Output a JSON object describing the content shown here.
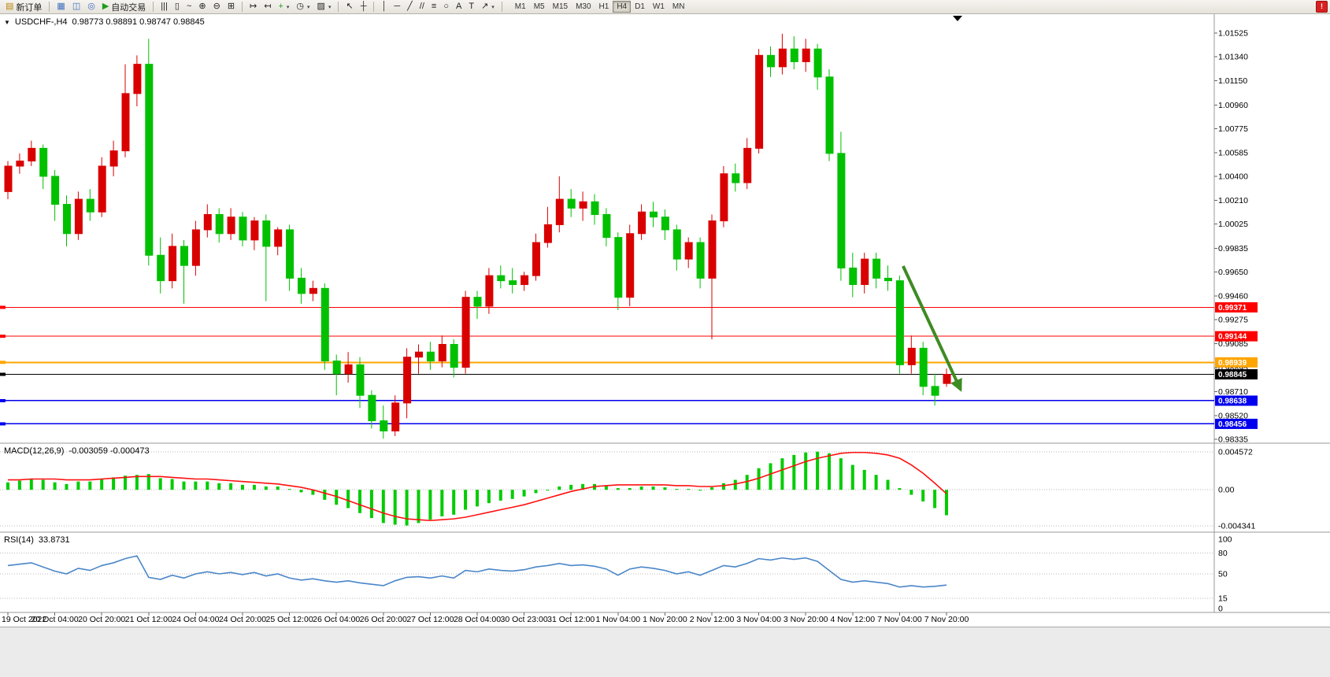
{
  "colors": {
    "bull": "#d90000",
    "bear": "#00c000",
    "macd_hist": "#00cc00",
    "macd_signal": "#ff1010",
    "rsi_line": "#4a86c8",
    "hline_red": "#ff0000",
    "hline_orange": "#ffa500",
    "hline_blue": "#0000ee",
    "current_price": "#000000",
    "arrow": "#3e8b24",
    "panel_border": "#999999",
    "grid_dotted": "#b8b8b8"
  },
  "icons": {
    "symbol_dropdown": "▼",
    "alert": "!"
  },
  "toolbar": {
    "buttons": [
      {
        "name": "new-order-button",
        "glyph": "▤",
        "color": "#b8860b",
        "label": "新订单"
      },
      {
        "sep": true
      },
      {
        "name": "market-watch-button",
        "glyph": "▦",
        "color": "#3c6ebf"
      },
      {
        "name": "navigator-button",
        "glyph": "◫",
        "color": "#3c6ebf"
      },
      {
        "name": "terminal-button",
        "glyph": "◎",
        "color": "#3c6ebf"
      },
      {
        "name": "autotrading-button",
        "glyph": "▶",
        "color": "#1d9e1d",
        "label": "自动交易"
      },
      {
        "sep": true
      },
      {
        "name": "bars-chart-type-button",
        "glyph": "|||"
      },
      {
        "name": "candles-chart-type-button",
        "glyph": "▯"
      },
      {
        "name": "line-chart-type-button",
        "glyph": "~"
      },
      {
        "name": "zoom-in-button",
        "glyph": "⊕"
      },
      {
        "name": "zoom-out-button",
        "glyph": "⊖"
      },
      {
        "name": "tile-windows-button",
        "glyph": "⊞"
      },
      {
        "sep": true
      },
      {
        "name": "auto-scroll-button",
        "glyph": "↦"
      },
      {
        "name": "chart-shift-button",
        "glyph": "↤"
      },
      {
        "name": "indicators-button",
        "glyph": "+",
        "color": "#1d9e1d",
        "dropdown": true
      },
      {
        "name": "periods-button",
        "glyph": "◷",
        "dropdown": true
      },
      {
        "name": "templates-button",
        "glyph": "▨",
        "dropdown": true
      },
      {
        "sep": true
      },
      {
        "name": "cursor-button",
        "glyph": "↖"
      },
      {
        "name": "crosshair-button",
        "glyph": "┼"
      },
      {
        "sep": true
      },
      {
        "name": "vertical-line-button",
        "glyph": "│"
      },
      {
        "name": "horizontal-line-button",
        "glyph": "─"
      },
      {
        "name": "trendline-button",
        "glyph": "╱"
      },
      {
        "name": "channel-button",
        "glyph": "//"
      },
      {
        "name": "fibonacci-button",
        "glyph": "≡"
      },
      {
        "name": "shapes-button",
        "glyph": "○"
      },
      {
        "name": "text-button",
        "glyph": "A"
      },
      {
        "name": "text-label-button",
        "glyph": "T"
      },
      {
        "name": "arrows-button",
        "glyph": "↗",
        "dropdown": true
      },
      {
        "sep": true
      }
    ],
    "timeframes": [
      "M1",
      "M5",
      "M15",
      "M30",
      "H1",
      "H4",
      "D1",
      "W1",
      "MN"
    ],
    "active_timeframe": "H4"
  },
  "chart": {
    "symbol_period": "USDCHF-,H4",
    "ohlc_values": "0.98773 0.98891 0.98747 0.98845"
  },
  "indicators": {
    "macd_label": "MACD(12,26,9)",
    "macd_values": "-0.003059 -0.000473",
    "rsi_label": "RSI(14)",
    "rsi_value": "33.8731"
  },
  "chart_data": {
    "type": "candlestick",
    "symbol": "USDCHF-",
    "timeframe": "H4",
    "current_ohlc": {
      "open": 0.98773,
      "high": 0.98891,
      "low": 0.98747,
      "close": 0.98845
    },
    "price_axis": {
      "min": 0.98335,
      "max": 1.01525,
      "ticks": [
        "1.01525",
        "1.01340",
        "1.01150",
        "1.00960",
        "1.00775",
        "1.00585",
        "1.00400",
        "1.00210",
        "1.00025",
        "0.99835",
        "0.99650",
        "0.99460",
        "0.99275",
        "0.99085",
        "0.98895",
        "0.98710",
        "0.98520",
        "0.98335"
      ]
    },
    "time_labels": [
      "19 Oct 2022",
      "20 Oct 04:00",
      "20 Oct 20:00",
      "21 Oct 12:00",
      "24 Oct 04:00",
      "24 Oct 20:00",
      "25 Oct 12:00",
      "26 Oct 04:00",
      "26 Oct 20:00",
      "27 Oct 12:00",
      "28 Oct 04:00",
      "30 Oct 23:00",
      "31 Oct 12:00",
      "1 Nov 04:00",
      "1 Nov 20:00",
      "2 Nov 12:00",
      "3 Nov 04:00",
      "3 Nov 20:00",
      "4 Nov 12:00",
      "7 Nov 04:00",
      "7 Nov 20:00"
    ],
    "candles_per_time_label": 4,
    "candles": [
      [
        1.0028,
        1.0052,
        1.0022,
        1.0048
      ],
      [
        1.0048,
        1.0058,
        1.0042,
        1.0052
      ],
      [
        1.0052,
        1.0068,
        1.0048,
        1.0062
      ],
      [
        1.0062,
        1.0065,
        1.003,
        1.004
      ],
      [
        1.004,
        1.0045,
        1.0005,
        1.0018
      ],
      [
        1.0018,
        1.0025,
        0.9985,
        0.9995
      ],
      [
        0.9995,
        1.0028,
        0.999,
        1.0022
      ],
      [
        1.0022,
        1.003,
        1.0005,
        1.0012
      ],
      [
        1.0012,
        1.0055,
        1.0008,
        1.0048
      ],
      [
        1.0048,
        1.0068,
        1.004,
        1.006
      ],
      [
        1.006,
        1.0128,
        1.0055,
        1.0105
      ],
      [
        1.0105,
        1.0135,
        1.0095,
        1.0128
      ],
      [
        1.0128,
        1.0148,
        0.997,
        0.9978
      ],
      [
        0.9978,
        0.9992,
        0.9948,
        0.9958
      ],
      [
        0.9958,
        0.9995,
        0.9952,
        0.9985
      ],
      [
        0.9985,
        0.999,
        0.994,
        0.997
      ],
      [
        0.997,
        1.0005,
        0.9962,
        0.9998
      ],
      [
        0.9998,
        1.0018,
        0.9992,
        1.001
      ],
      [
        1.001,
        1.0015,
        0.9988,
        0.9995
      ],
      [
        0.9995,
        1.0015,
        0.999,
        1.0008
      ],
      [
        1.0008,
        1.0012,
        0.9985,
        0.999
      ],
      [
        0.999,
        1.0008,
        0.9982,
        1.0005
      ],
      [
        1.0005,
        1.001,
        0.9942,
        0.9985
      ],
      [
        0.9985,
        1.0,
        0.9978,
        0.9998
      ],
      [
        0.9998,
        1.0002,
        0.995,
        0.996
      ],
      [
        0.996,
        0.9968,
        0.994,
        0.9948
      ],
      [
        0.9948,
        0.9958,
        0.9942,
        0.9952
      ],
      [
        0.9952,
        0.9956,
        0.9888,
        0.9895
      ],
      [
        0.9895,
        0.99,
        0.9868,
        0.9885
      ],
      [
        0.9885,
        0.9902,
        0.9878,
        0.9892
      ],
      [
        0.9892,
        0.9898,
        0.9858,
        0.9868
      ],
      [
        0.9868,
        0.9872,
        0.9842,
        0.9848
      ],
      [
        0.9848,
        0.986,
        0.9834,
        0.984
      ],
      [
        0.984,
        0.9868,
        0.9836,
        0.9862
      ],
      [
        0.9862,
        0.9905,
        0.985,
        0.9898
      ],
      [
        0.9898,
        0.9908,
        0.9885,
        0.9902
      ],
      [
        0.9902,
        0.991,
        0.9888,
        0.9895
      ],
      [
        0.9895,
        0.9915,
        0.989,
        0.9908
      ],
      [
        0.9908,
        0.9912,
        0.9882,
        0.989
      ],
      [
        0.989,
        0.995,
        0.9885,
        0.9945
      ],
      [
        0.9945,
        0.995,
        0.9928,
        0.9938
      ],
      [
        0.9938,
        0.9968,
        0.9932,
        0.9962
      ],
      [
        0.9962,
        0.997,
        0.9952,
        0.9958
      ],
      [
        0.9958,
        0.9968,
        0.9948,
        0.9955
      ],
      [
        0.9955,
        0.9965,
        0.995,
        0.9962
      ],
      [
        0.9962,
        0.9995,
        0.9958,
        0.9988
      ],
      [
        0.9988,
        1.0016,
        0.9984,
        1.0002
      ],
      [
        1.0002,
        1.004,
        0.9996,
        1.0022
      ],
      [
        1.0022,
        1.003,
        1.0008,
        1.0015
      ],
      [
        1.0015,
        1.0028,
        1.0005,
        1.002
      ],
      [
        1.002,
        1.0026,
        1.0002,
        1.001
      ],
      [
        1.001,
        1.0015,
        0.9985,
        0.9992
      ],
      [
        0.9992,
        0.9996,
        0.9935,
        0.9945
      ],
      [
        0.9945,
        1.0002,
        0.9938,
        0.9995
      ],
      [
        0.9995,
        1.0018,
        0.999,
        1.0012
      ],
      [
        1.0012,
        1.002,
        1.0,
        1.0008
      ],
      [
        1.0008,
        1.0014,
        0.999,
        0.9998
      ],
      [
        0.9998,
        1.0002,
        0.9966,
        0.9975
      ],
      [
        0.9975,
        0.9992,
        0.9968,
        0.9988
      ],
      [
        0.9988,
        0.9992,
        0.9952,
        0.996
      ],
      [
        0.996,
        1.001,
        0.9912,
        1.0005
      ],
      [
        1.0005,
        1.0048,
        1.0,
        1.0042
      ],
      [
        1.0042,
        1.005,
        1.0028,
        1.0035
      ],
      [
        1.0035,
        1.007,
        1.003,
        1.0062
      ],
      [
        1.0062,
        1.014,
        1.0058,
        1.0135
      ],
      [
        1.0135,
        1.0142,
        1.0118,
        1.0126
      ],
      [
        1.0126,
        1.0152,
        1.012,
        1.014
      ],
      [
        1.014,
        1.015,
        1.0124,
        1.013
      ],
      [
        1.013,
        1.0148,
        1.0122,
        1.014
      ],
      [
        1.014,
        1.0144,
        1.0108,
        1.0118
      ],
      [
        1.0118,
        1.0124,
        1.0052,
        1.0058
      ],
      [
        1.0058,
        1.0075,
        0.9958,
        0.9968
      ],
      [
        0.9968,
        0.998,
        0.9945,
        0.9955
      ],
      [
        0.9955,
        0.998,
        0.9948,
        0.9975
      ],
      [
        0.9975,
        0.998,
        0.9952,
        0.996
      ],
      [
        0.996,
        0.997,
        0.995,
        0.9958
      ],
      [
        0.9958,
        0.9962,
        0.9885,
        0.9892
      ],
      [
        0.9892,
        0.9915,
        0.9885,
        0.9905
      ],
      [
        0.9905,
        0.991,
        0.9868,
        0.9875
      ],
      [
        0.9875,
        0.9885,
        0.986,
        0.9868
      ],
      [
        0.98773,
        0.98891,
        0.98747,
        0.98845
      ]
    ],
    "hlines": [
      {
        "price": 0.99371,
        "color": "#ff0000",
        "label": "0.99371",
        "width": 1.2
      },
      {
        "price": 0.99144,
        "color": "#ff0000",
        "label": "0.99144",
        "width": 1.2
      },
      {
        "price": 0.98939,
        "color": "#ffa500",
        "label": "0.98939",
        "width": 2
      },
      {
        "price": 0.98845,
        "color": "#000000",
        "label": "0.98845",
        "width": 1,
        "type": "current-price"
      },
      {
        "price": 0.98638,
        "color": "#0000ee",
        "label": "0.98638",
        "width": 1.5
      },
      {
        "price": 0.98456,
        "color": "#0000ee",
        "label": "0.98456",
        "width": 1.5
      }
    ],
    "arrow_annotation": {
      "from_candle": 76.3,
      "from_price": 0.99695,
      "to_candle": 81.2,
      "to_price": 0.98725,
      "color": "#3e8b24"
    },
    "macd": {
      "label": "MACD(12,26,9)",
      "value_main": -0.003059,
      "value_signal": -0.000473,
      "axis_max": 0.004572,
      "axis_min": -0.004341,
      "axis_ticks": [
        "0.004572",
        "0.00",
        "-0.004341"
      ],
      "histogram": [
        0.0009,
        0.0011,
        0.0013,
        0.0012,
        0.0009,
        0.0007,
        0.001,
        0.001,
        0.0013,
        0.0015,
        0.0017,
        0.0018,
        0.0019,
        0.0014,
        0.0013,
        0.001,
        0.001,
        0.001,
        0.0008,
        0.0008,
        0.0006,
        0.0006,
        0.0004,
        0.0004,
        0.0001,
        -0.0003,
        -0.0006,
        -0.0012,
        -0.0018,
        -0.0022,
        -0.0028,
        -0.0034,
        -0.004,
        -0.0042,
        -0.0043,
        -0.004,
        -0.0036,
        -0.0032,
        -0.003,
        -0.0024,
        -0.002,
        -0.0016,
        -0.0013,
        -0.0011,
        -0.0008,
        -0.0004,
        0.0,
        0.0004,
        0.0006,
        0.0007,
        0.0007,
        0.0005,
        0.0002,
        0.0002,
        0.0004,
        0.0004,
        0.0003,
        0.0001,
        0.0001,
        -0.0001,
        0.0003,
        0.0008,
        0.0012,
        0.0018,
        0.0026,
        0.0032,
        0.0038,
        0.0042,
        0.0045,
        0.0046,
        0.0044,
        0.0038,
        0.003,
        0.0024,
        0.0018,
        0.0012,
        0.0002,
        -0.0006,
        -0.0014,
        -0.0022,
        -0.003059
      ],
      "signal": [
        0.0012,
        0.0012,
        0.0013,
        0.0013,
        0.0013,
        0.0012,
        0.0012,
        0.0012,
        0.0013,
        0.0014,
        0.0015,
        0.0016,
        0.0016,
        0.0016,
        0.0015,
        0.0014,
        0.0013,
        0.0013,
        0.0012,
        0.0011,
        0.001,
        0.0009,
        0.0008,
        0.0007,
        0.0005,
        0.0003,
        0.0,
        -0.0004,
        -0.0008,
        -0.0013,
        -0.0018,
        -0.0023,
        -0.0028,
        -0.0032,
        -0.0035,
        -0.0036,
        -0.0037,
        -0.0036,
        -0.0035,
        -0.0033,
        -0.003,
        -0.0027,
        -0.0024,
        -0.0021,
        -0.0018,
        -0.0014,
        -0.001,
        -0.0006,
        -0.0002,
        0.0001,
        0.0004,
        0.0005,
        0.0006,
        0.0006,
        0.0006,
        0.0006,
        0.0006,
        0.0005,
        0.0005,
        0.0004,
        0.0004,
        0.0005,
        0.0007,
        0.001,
        0.0014,
        0.0019,
        0.0024,
        0.0029,
        0.0034,
        0.0038,
        0.0041,
        0.0044,
        0.0045,
        0.0045,
        0.0044,
        0.0042,
        0.0038,
        0.003,
        0.002,
        0.0008,
        -0.000473
      ]
    },
    "rsi": {
      "label": "RSI(14)",
      "value": 33.8731,
      "levels": [
        80,
        50,
        15
      ],
      "axis_ticks": [
        "100",
        "80",
        "50",
        "15",
        "0"
      ],
      "values": [
        62,
        64,
        66,
        60,
        54,
        50,
        58,
        55,
        62,
        66,
        72,
        76,
        45,
        42,
        48,
        44,
        50,
        53,
        50,
        52,
        49,
        52,
        47,
        50,
        44,
        41,
        43,
        40,
        38,
        40,
        37,
        35,
        33,
        40,
        45,
        46,
        44,
        47,
        44,
        55,
        53,
        57,
        55,
        54,
        56,
        60,
        62,
        65,
        62,
        63,
        61,
        57,
        48,
        57,
        60,
        58,
        55,
        50,
        53,
        48,
        55,
        62,
        60,
        65,
        72,
        70,
        73,
        71,
        73,
        68,
        55,
        42,
        38,
        40,
        38,
        36,
        31,
        33,
        31,
        32,
        33.8731
      ]
    }
  }
}
